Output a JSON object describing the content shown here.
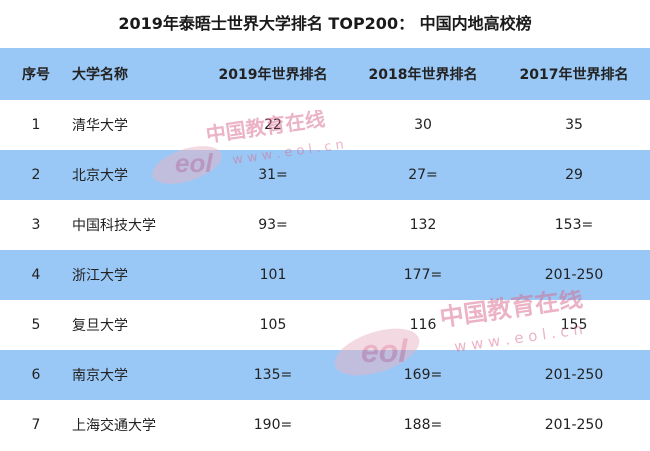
{
  "title": "2019年泰晤士世界大学排名 TOP200： 中国内地高校榜",
  "table": {
    "headers": {
      "rank": "序号",
      "name": "大学名称",
      "y2019": "2019年世界排名",
      "y2018": "2018年世界排名",
      "y2017": "2017年世界排名"
    },
    "rows": [
      {
        "rank": "1",
        "name": "清华大学",
        "y2019": "22",
        "y2018": "30",
        "y2017": "35"
      },
      {
        "rank": "2",
        "name": "北京大学",
        "y2019": "31=",
        "y2018": "27=",
        "y2017": "29"
      },
      {
        "rank": "3",
        "name": "中国科技大学",
        "y2019": "93=",
        "y2018": "132",
        "y2017": "153="
      },
      {
        "rank": "4",
        "name": "浙江大学",
        "y2019": "101",
        "y2018": "177=",
        "y2017": "201-250"
      },
      {
        "rank": "5",
        "name": "复旦大学",
        "y2019": "105",
        "y2018": "116",
        "y2017": "155"
      },
      {
        "rank": "6",
        "name": "南京大学",
        "y2019": "135=",
        "y2018": "169=",
        "y2017": "201-250"
      },
      {
        "rank": "7",
        "name": "上海交通大学",
        "y2019": "190=",
        "y2018": "188=",
        "y2017": "201-250"
      }
    ]
  },
  "watermark": {
    "cn": "中国教育在线",
    "en": "w w w . e o l . c n",
    "logo": "eol"
  },
  "colors": {
    "header_bg": "#9ac8f6",
    "stripe_bg": "#9ac8f6"
  }
}
